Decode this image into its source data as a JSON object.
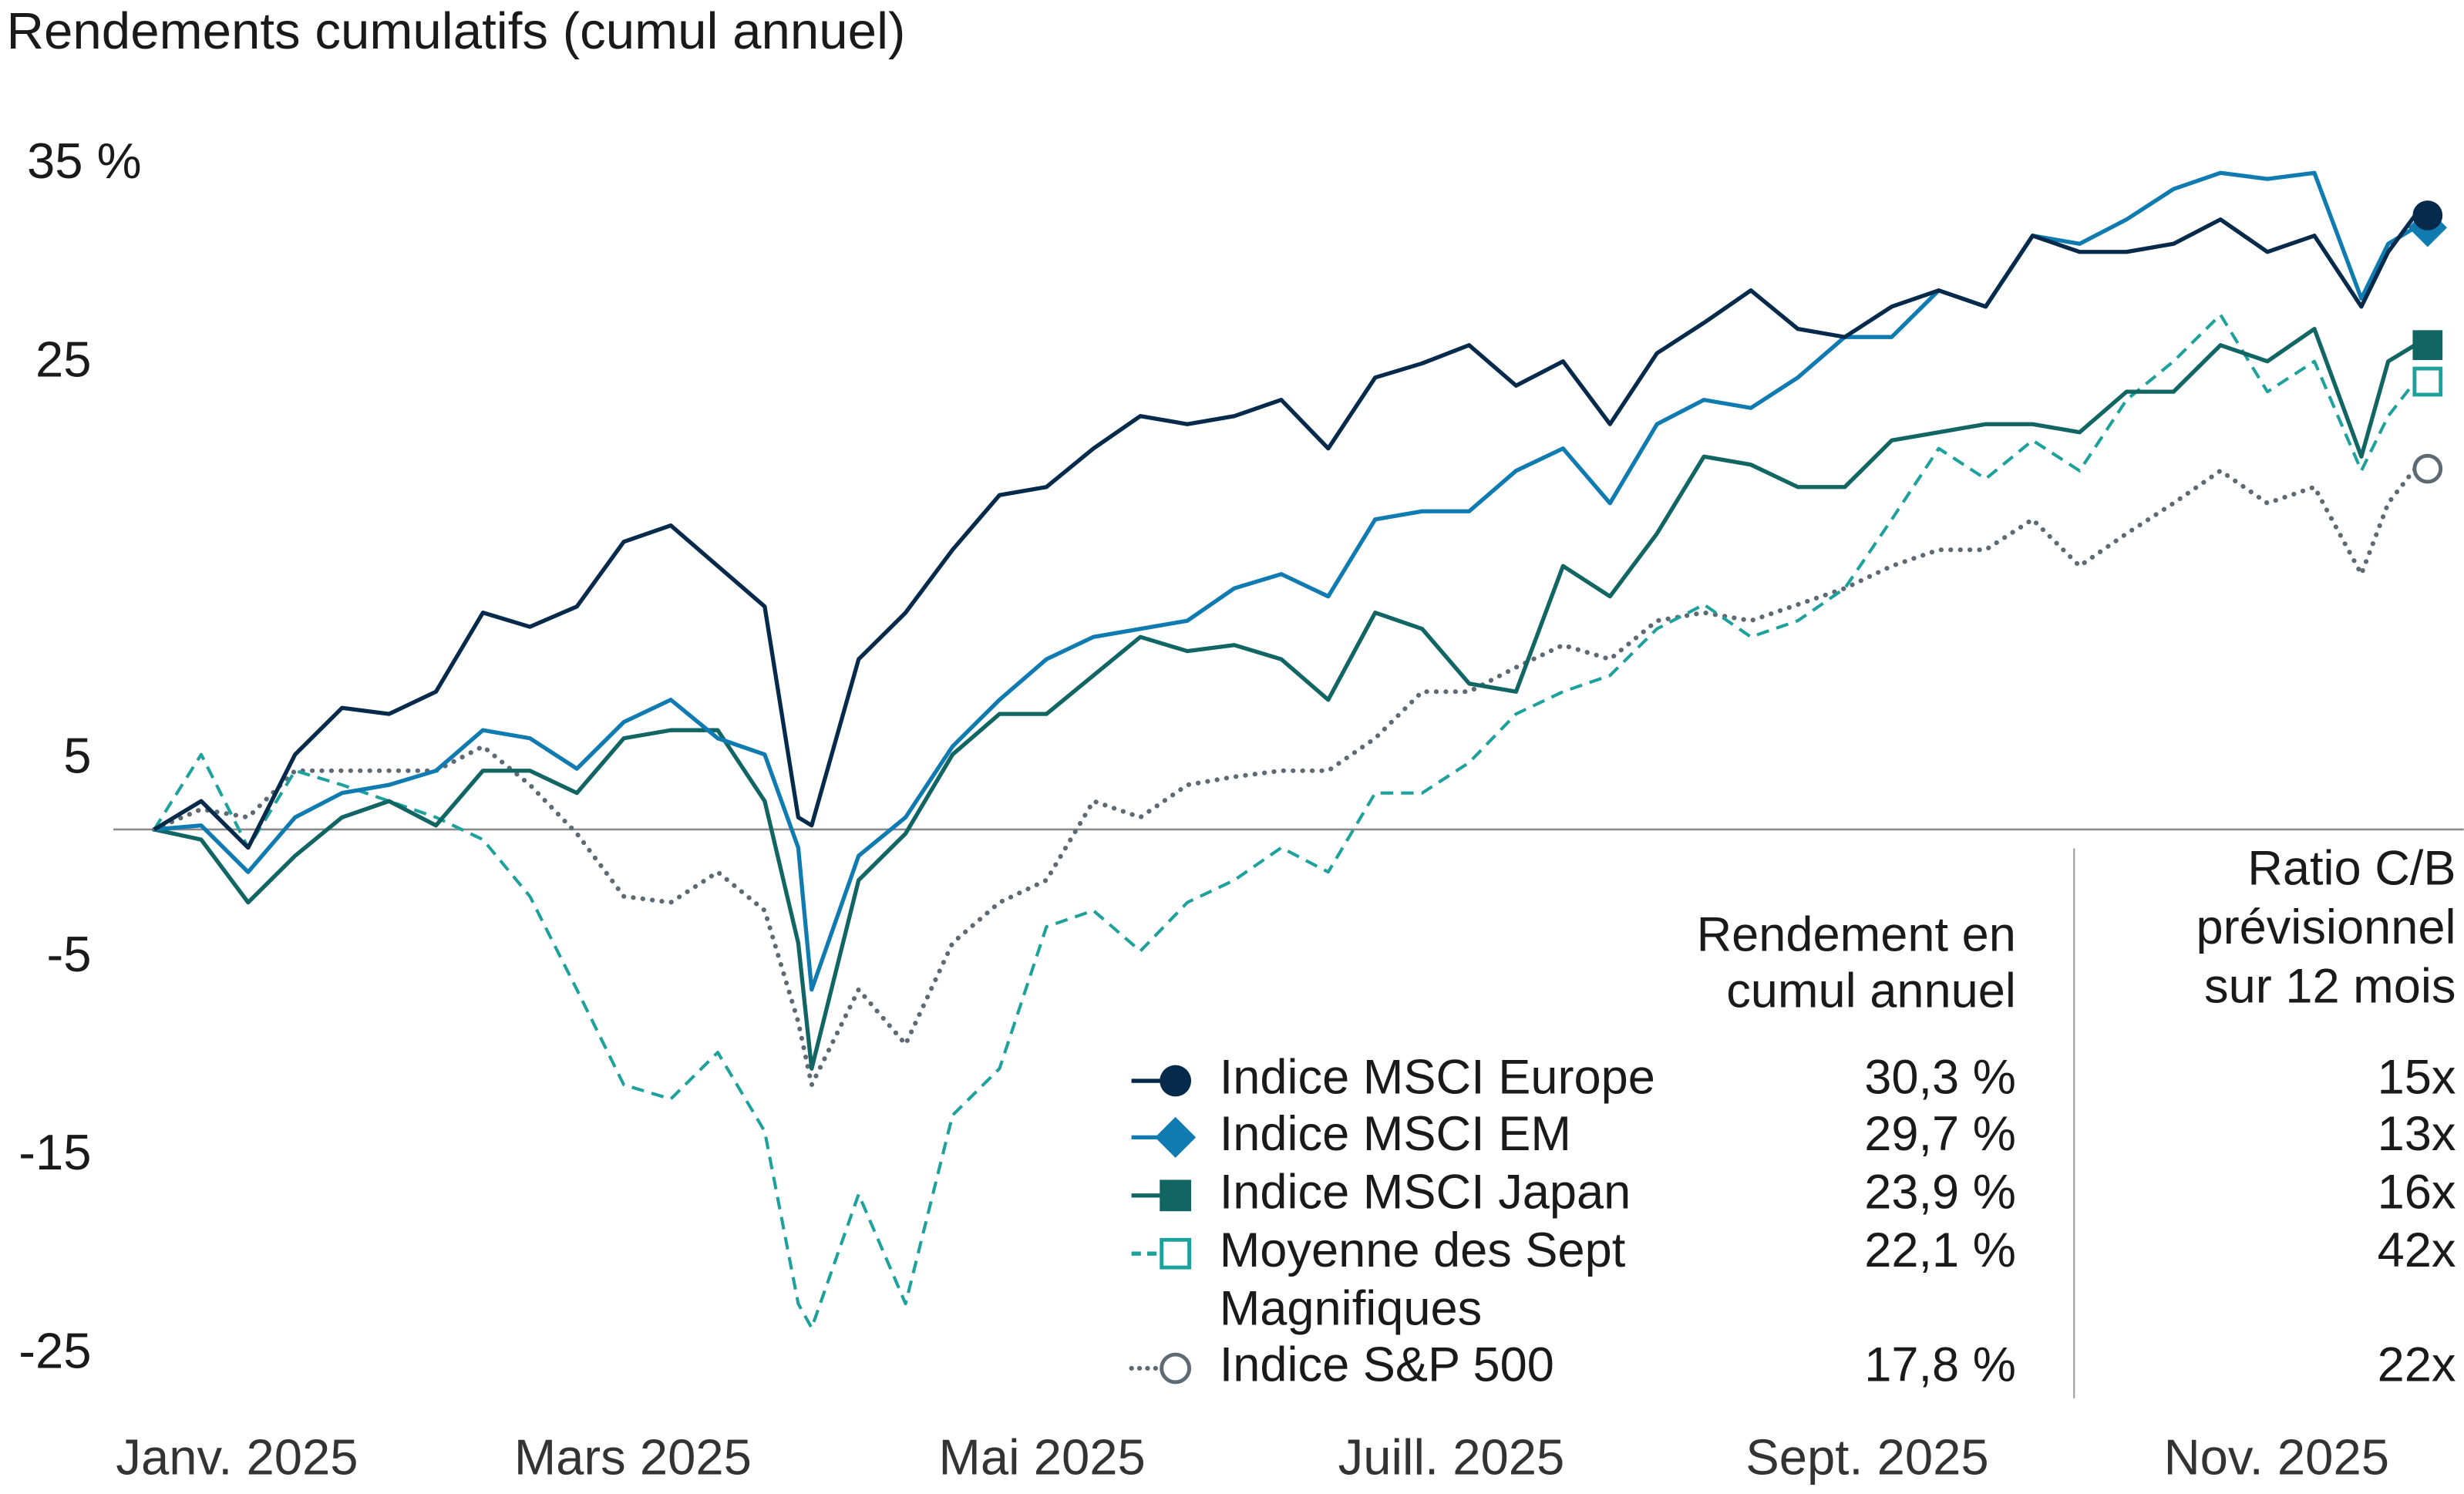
{
  "chart_data": {
    "type": "line",
    "title": "Rendements cumulatifs (cumul annuel)",
    "xlabel": "",
    "ylabel": "",
    "y_ticks": [
      {
        "value": 35,
        "label": "35 %"
      },
      {
        "value": 25,
        "label": "25"
      },
      {
        "value": 5,
        "label": "5"
      },
      {
        "value": -5,
        "label": "-5"
      },
      {
        "value": -15,
        "label": "-15"
      },
      {
        "value": -25,
        "label": "-25"
      }
    ],
    "x_ticks": [
      {
        "date": "2025-01-01",
        "label": "Janv. 2025"
      },
      {
        "date": "2025-03-01",
        "label": "Mars 2025"
      },
      {
        "date": "2025-05-01",
        "label": "Mai 2025"
      },
      {
        "date": "2025-07-01",
        "label": "Juill. 2025"
      },
      {
        "date": "2025-09-01",
        "label": "Sept. 2025"
      },
      {
        "date": "2025-11-01",
        "label": "Nov. 2025"
      }
    ],
    "zero_line": true,
    "grid": false,
    "legend_placement": "bottom-right",
    "x": [
      "2025-01-02",
      "2025-01-09",
      "2025-01-16",
      "2025-01-23",
      "2025-01-30",
      "2025-02-06",
      "2025-02-13",
      "2025-02-20",
      "2025-02-27",
      "2025-03-06",
      "2025-03-13",
      "2025-03-20",
      "2025-03-27",
      "2025-04-03",
      "2025-04-08",
      "2025-04-10",
      "2025-04-17",
      "2025-04-24",
      "2025-05-01",
      "2025-05-08",
      "2025-05-15",
      "2025-05-22",
      "2025-05-29",
      "2025-06-05",
      "2025-06-12",
      "2025-06-19",
      "2025-06-26",
      "2025-07-03",
      "2025-07-10",
      "2025-07-17",
      "2025-07-24",
      "2025-07-31",
      "2025-08-07",
      "2025-08-14",
      "2025-08-21",
      "2025-08-28",
      "2025-09-04",
      "2025-09-11",
      "2025-09-18",
      "2025-09-25",
      "2025-10-02",
      "2025-10-09",
      "2025-10-16",
      "2025-10-23",
      "2025-10-30",
      "2025-11-06",
      "2025-11-13",
      "2025-11-20",
      "2025-11-27",
      "2025-12-01",
      "2025-12-05"
    ],
    "series": [
      {
        "name": "Indice MSCI Europe",
        "color": "#062a4b",
        "style": "solid",
        "marker": "circle-filled",
        "values": [
          0,
          1.4,
          -0.9,
          3.7,
          6,
          5.7,
          6.8,
          10.7,
          10,
          11,
          14.2,
          15,
          13,
          11,
          0.6,
          0.2,
          8.4,
          10.7,
          13.8,
          16.5,
          16.9,
          18.8,
          20.4,
          20,
          20.4,
          21.2,
          18.8,
          22.3,
          23,
          23.9,
          21.9,
          23.1,
          20,
          23.5,
          25,
          26.6,
          24.7,
          24.3,
          25.8,
          26.6,
          25.8,
          29.3,
          28.5,
          28.5,
          28.9,
          30.1,
          28.5,
          29.3,
          25.8,
          28.5,
          30.3
        ]
      },
      {
        "name": "Indice MSCI EM",
        "color": "#0f7bb1",
        "style": "solid",
        "marker": "diamond-filled",
        "values": [
          0,
          0.2,
          -2.1,
          0.6,
          1.8,
          2.2,
          2.9,
          4.9,
          4.5,
          3,
          5.3,
          6.4,
          4.5,
          3.7,
          -0.9,
          -7.9,
          -1.3,
          0.6,
          4.1,
          6.4,
          8.4,
          9.5,
          9.9,
          10.3,
          11.9,
          12.6,
          11.5,
          15.3,
          15.7,
          15.7,
          17.7,
          18.8,
          16.1,
          20,
          21.2,
          20.8,
          22.3,
          24.3,
          24.3,
          26.6,
          25.8,
          29.3,
          28.9,
          30.1,
          31.6,
          32.4,
          32.1,
          32.4,
          26.2,
          28.9,
          29.7
        ]
      },
      {
        "name": "Indice MSCI Japan",
        "color": "#116663",
        "style": "solid",
        "marker": "square-filled",
        "values": [
          0,
          -0.5,
          -3.6,
          -1.3,
          0.6,
          1.4,
          0.2,
          2.9,
          2.9,
          1.8,
          4.5,
          4.9,
          4.9,
          1.4,
          -5.6,
          -11.8,
          -2.5,
          -0.2,
          3.7,
          5.7,
          5.7,
          7.6,
          9.5,
          8.8,
          9.1,
          8.4,
          6.4,
          10.7,
          9.9,
          7.2,
          6.8,
          13,
          11.5,
          14.6,
          18.4,
          18,
          16.9,
          16.9,
          19.2,
          19.6,
          20,
          20,
          19.6,
          21.6,
          21.6,
          23.9,
          23.1,
          24.7,
          18.4,
          23.1,
          23.9
        ]
      },
      {
        "name": "Moyenne des Sept Magnifiques",
        "color": "#1da19c",
        "style": "dashed",
        "marker": "square-open",
        "values": [
          0,
          3.7,
          -0.9,
          2.9,
          2.2,
          1.4,
          0.6,
          -0.5,
          -3.3,
          -7.9,
          -12.6,
          -13.3,
          -11,
          -14.9,
          -23.4,
          -24.6,
          -18,
          -23.4,
          -14.1,
          -11.8,
          -4.8,
          -4,
          -6,
          -3.6,
          -2.5,
          -0.9,
          -2.1,
          1.8,
          1.8,
          3.3,
          5.7,
          6.8,
          7.6,
          9.9,
          11.1,
          9.5,
          10.3,
          11.9,
          15.3,
          18.8,
          17.3,
          19.2,
          17.7,
          21.2,
          23.1,
          25.4,
          21.6,
          23.1,
          17.7,
          20.4,
          22.1
        ]
      },
      {
        "name": "Indice S&P 500",
        "color": "#5e6a73",
        "style": "dotted",
        "marker": "circle-open",
        "values": [
          0,
          1,
          0.6,
          2.9,
          2.9,
          2.9,
          2.9,
          4.1,
          2.2,
          -0.2,
          -3.3,
          -3.6,
          -2.1,
          -4,
          -9.5,
          -12.6,
          -7.9,
          -10.6,
          -5.6,
          -3.6,
          -2.5,
          1.4,
          0.6,
          2.2,
          2.6,
          2.9,
          2.9,
          4.5,
          6.8,
          6.8,
          8,
          9.1,
          8.4,
          10.3,
          10.7,
          10.3,
          11.1,
          11.9,
          13,
          13.8,
          13.8,
          15.3,
          13,
          14.6,
          16.1,
          17.7,
          16.1,
          16.9,
          12.6,
          16.1,
          17.8
        ]
      }
    ]
  },
  "legend": {
    "ytd_header": [
      "Rendement en",
      "cumul annuel"
    ],
    "pe_header": [
      "Ratio C/B",
      "prévisionnel",
      "sur 12 mois"
    ],
    "rows": [
      {
        "name_lines": [
          "Indice MSCI Europe"
        ],
        "ytd": "30,3 %",
        "pe": "15x"
      },
      {
        "name_lines": [
          "Indice MSCI EM"
        ],
        "ytd": "29,7 %",
        "pe": "13x"
      },
      {
        "name_lines": [
          "Indice MSCI Japan"
        ],
        "ytd": "23,9 %",
        "pe": "16x"
      },
      {
        "name_lines": [
          "Moyenne des Sept",
          "Magnifiques"
        ],
        "ytd": "22,1 %",
        "pe": "42x"
      },
      {
        "name_lines": [
          "Indice S&P 500"
        ],
        "ytd": "17,8 %",
        "pe": "22x"
      }
    ]
  }
}
